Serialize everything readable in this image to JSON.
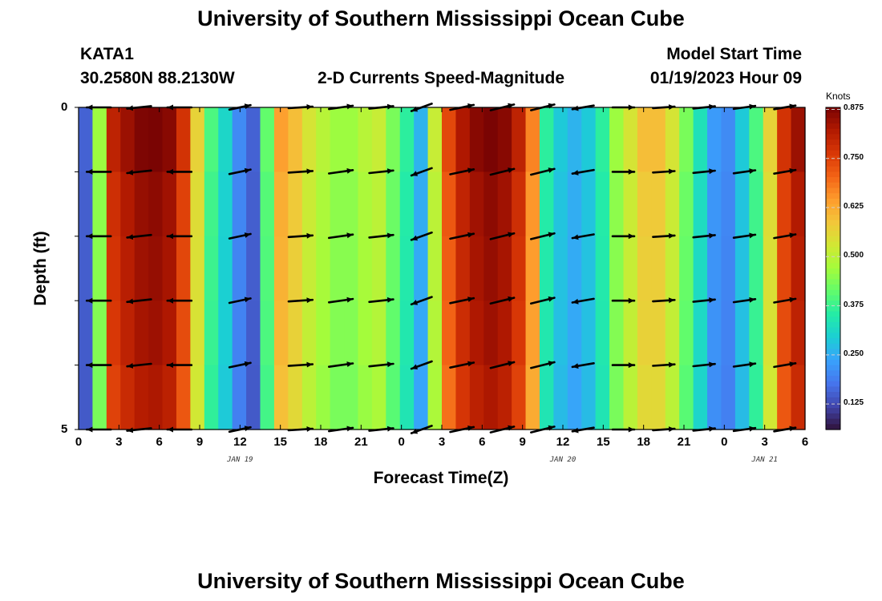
{
  "header": {
    "title": "University of Southern Mississippi Ocean Cube",
    "station": "KATA1",
    "location": "30.2580N  88.2130W",
    "product": "2-D Currents Speed-Magnitude",
    "model_label": "Model Start Time",
    "model_time": "01/19/2023 Hour 09"
  },
  "footer": {
    "title": "University of Southern Mississippi Ocean Cube"
  },
  "chart_data": {
    "type": "heatmap",
    "title": "2-D Currents Speed-Magnitude",
    "xlabel": "Forecast Time(Z)",
    "ylabel": "Depth (ft)",
    "x_range_hours": [
      0,
      54
    ],
    "y_range_ft": [
      0,
      5
    ],
    "x_tick_labels": [
      "0",
      "3",
      "6",
      "9",
      "12",
      "15",
      "18",
      "21",
      "0",
      "3",
      "6",
      "9",
      "12",
      "15",
      "18",
      "21",
      "0",
      "3",
      "6"
    ],
    "y_tick_labels": [
      "0",
      "5"
    ],
    "date_labels": [
      {
        "hour": 12,
        "label": "JAN 19"
      },
      {
        "hour": 36,
        "label": "JAN 20"
      },
      {
        "hour": 51,
        "label": "JAN 21"
      }
    ],
    "colorbar": {
      "unit": "Knots",
      "ticks": [
        "0.875",
        "0.750",
        "0.625",
        "0.500",
        "0.375",
        "0.250",
        "0.125"
      ],
      "tick_values": [
        0.875,
        0.75,
        0.625,
        0.5,
        0.375,
        0.25,
        0.125
      ],
      "range": [
        0.06,
        0.88
      ],
      "palette": [
        "#30123b",
        "#4145ab",
        "#4675ed",
        "#39a2fc",
        "#1bcfd4",
        "#24eca6",
        "#61fc6c",
        "#a4fc3b",
        "#d1e834",
        "#f3c63a",
        "#fe9b2d",
        "#f36315",
        "#d93806",
        "#b11901",
        "#7a0403"
      ]
    },
    "speed_by_hour": [
      0.15,
      0.45,
      0.78,
      0.82,
      0.85,
      0.86,
      0.84,
      0.75,
      0.55,
      0.38,
      0.3,
      0.2,
      0.15,
      0.4,
      0.62,
      0.58,
      0.52,
      0.48,
      0.45,
      0.45,
      0.48,
      0.5,
      0.42,
      0.35,
      0.25,
      0.5,
      0.72,
      0.8,
      0.84,
      0.86,
      0.84,
      0.78,
      0.65,
      0.35,
      0.28,
      0.25,
      0.28,
      0.35,
      0.45,
      0.52,
      0.58,
      0.58,
      0.52,
      0.42,
      0.32,
      0.22,
      0.2,
      0.28,
      0.38,
      0.55,
      0.75,
      0.82
    ],
    "depth_factor": [
      1.03,
      1.0,
      0.99,
      0.98,
      0.96
    ],
    "arrow_depth_rows_ft": [
      0,
      1,
      2,
      3,
      4,
      5
    ],
    "arrows": [
      {
        "hour": 1.5,
        "dir_deg": 180,
        "len": 1.0
      },
      {
        "hour": 4.5,
        "dir_deg": 186,
        "len": 1.0
      },
      {
        "hour": 7.5,
        "dir_deg": 180,
        "len": 1.0
      },
      {
        "hour": 12.0,
        "dir_deg": 12,
        "len": 0.9
      },
      {
        "hour": 16.5,
        "dir_deg": 4,
        "len": 1.0
      },
      {
        "hour": 19.5,
        "dir_deg": 8,
        "len": 1.0
      },
      {
        "hour": 22.5,
        "dir_deg": 6,
        "len": 1.0
      },
      {
        "hour": 25.5,
        "dir_deg": 200,
        "len": 0.9
      },
      {
        "hour": 28.5,
        "dir_deg": 12,
        "len": 1.0
      },
      {
        "hour": 31.5,
        "dir_deg": 14,
        "len": 1.0
      },
      {
        "hour": 34.5,
        "dir_deg": 14,
        "len": 1.0
      },
      {
        "hour": 37.5,
        "dir_deg": 190,
        "len": 0.9
      },
      {
        "hour": 40.5,
        "dir_deg": 0,
        "len": 0.9
      },
      {
        "hour": 43.5,
        "dir_deg": 4,
        "len": 0.9
      },
      {
        "hour": 46.5,
        "dir_deg": 6,
        "len": 0.9
      },
      {
        "hour": 49.5,
        "dir_deg": 8,
        "len": 0.9
      },
      {
        "hour": 52.5,
        "dir_deg": 10,
        "len": 0.9
      }
    ]
  }
}
